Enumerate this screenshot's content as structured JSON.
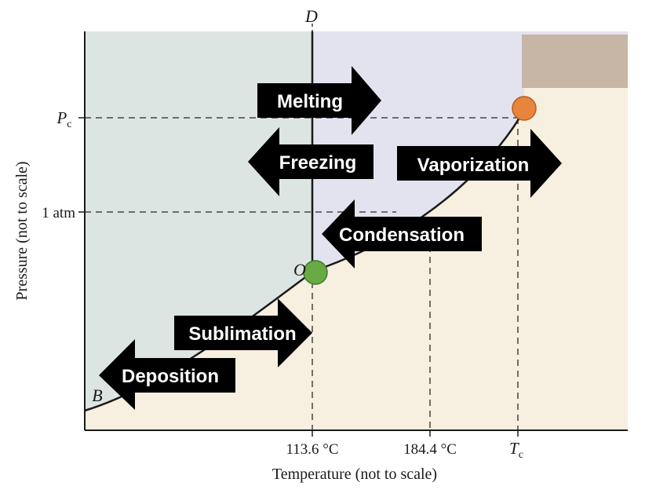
{
  "diagram": {
    "x_axis_label": "Temperature (not to scale)",
    "y_axis_label": "Pressure (not to scale)",
    "x_ticks": [
      {
        "text": "113.6 °C"
      },
      {
        "text": "184.4 °C"
      }
    ],
    "x_critical_temp": {
      "symbol": "T",
      "subscript": "c"
    },
    "y_critical_pressure": {
      "symbol": "P",
      "subscript": "c"
    },
    "y_ticks": [
      {
        "text": "1 atm"
      }
    ],
    "points": {
      "B": "B",
      "D": "D",
      "O": "O"
    },
    "arrows": {
      "melting": "Melting",
      "freezing": "Freezing",
      "vaporization": "Vaporization",
      "condensation": "Condensation",
      "sublimation": "Sublimation",
      "deposition": "Deposition"
    },
    "colors": {
      "solid_region": "#dde5e2",
      "liquid_region": "#e3e3f0",
      "gas_region": "#f7efdf",
      "triple_point": "#6aaa45",
      "critical_point": "#e8853d",
      "arrow_fill": "#000000",
      "overlay_box": "#c7b5a6"
    }
  }
}
